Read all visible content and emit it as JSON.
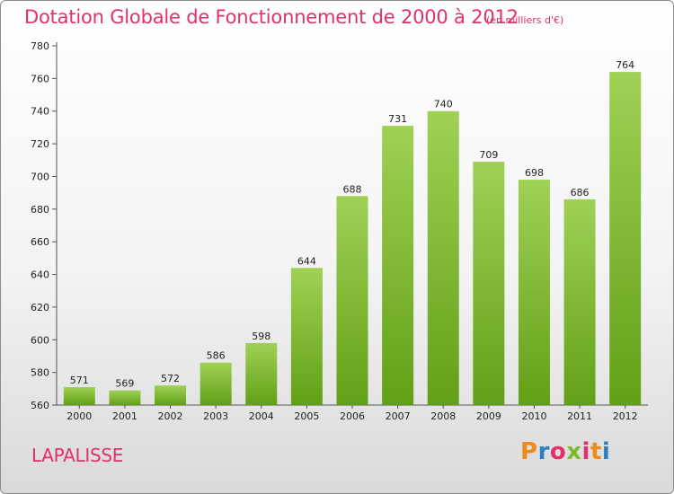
{
  "header": {
    "title": "Dotation Globale de Fonctionnement de 2000 à 2012",
    "unit": "(en milliers d'€)"
  },
  "footer": {
    "commune": "LAPALISSE",
    "logo": {
      "text": "Proxiti",
      "letter_colors": [
        "#f08a1a",
        "#2c7fc2",
        "#e2306e",
        "#7fba2d",
        "#e2306e",
        "#f08a1a",
        "#2c7fc2"
      ]
    }
  },
  "colors": {
    "accent": "#e2306e",
    "bar_top": "#9fd155",
    "bar_bottom": "#62a017"
  },
  "chart_data": {
    "type": "bar",
    "title": "Dotation Globale de Fonctionnement de 2000 à 2012",
    "subtitle": "(en milliers d'€)",
    "categories": [
      "2000",
      "2001",
      "2002",
      "2003",
      "2004",
      "2005",
      "2006",
      "2007",
      "2008",
      "2009",
      "2010",
      "2011",
      "2012"
    ],
    "values": [
      571,
      569,
      572,
      586,
      598,
      644,
      688,
      731,
      740,
      709,
      698,
      686,
      764
    ],
    "ylim": [
      560,
      780
    ],
    "yticks": [
      560,
      580,
      600,
      620,
      640,
      660,
      680,
      700,
      720,
      740,
      760,
      780
    ],
    "grid": false,
    "legend": "none",
    "data_labels": true
  }
}
